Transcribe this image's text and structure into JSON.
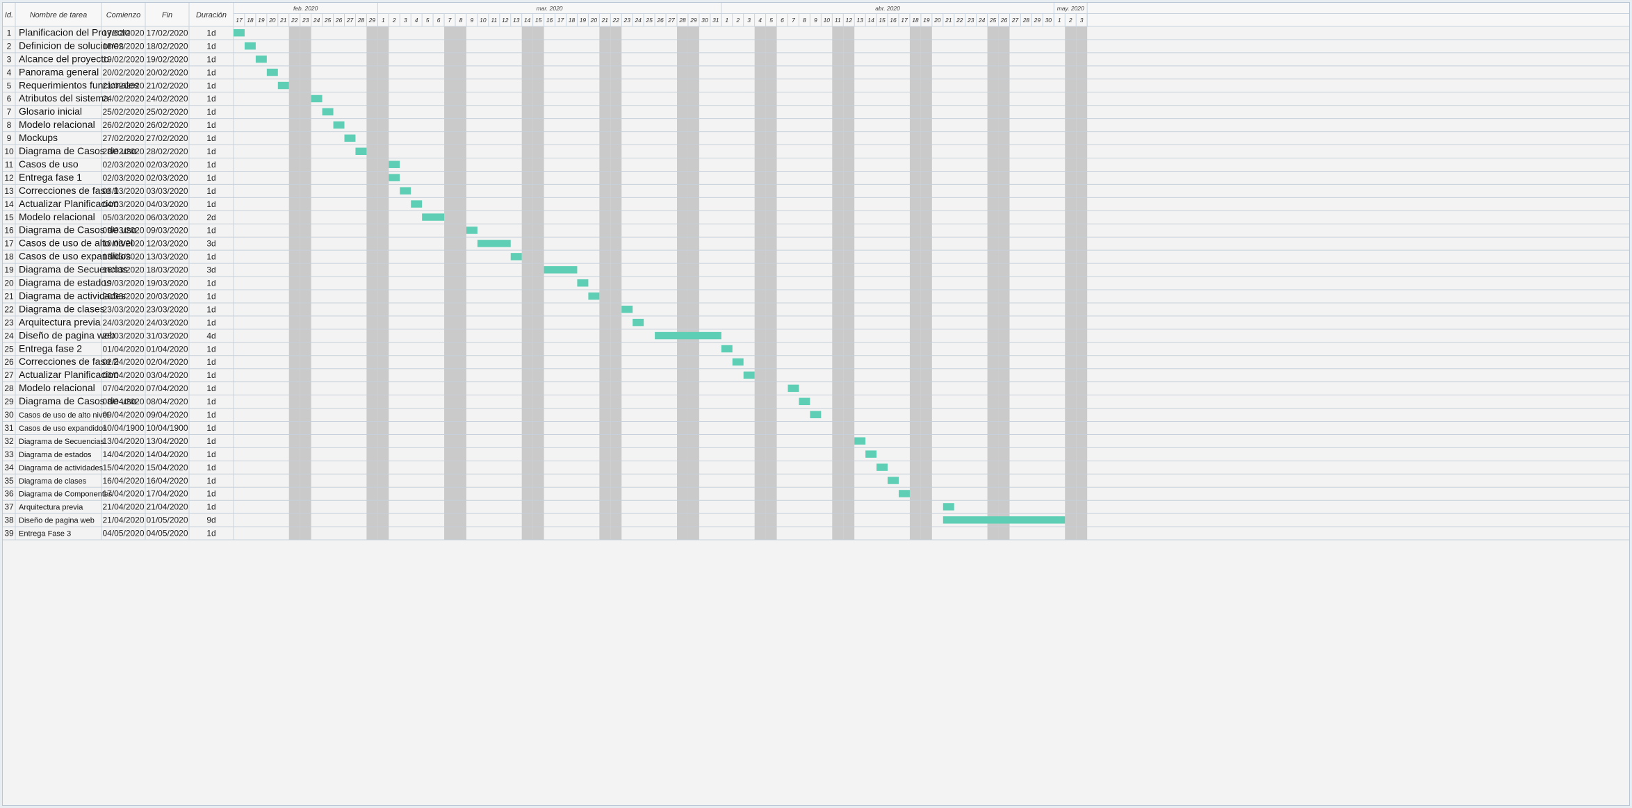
{
  "columns": {
    "id": "Id.",
    "name": "Nombre de tarea",
    "start": "Comienzo",
    "end": "Fin",
    "duration": "Duración"
  },
  "colors": {
    "bar": "#5ecfb4",
    "weekend": "#cacaca",
    "grid": "#c9d3de",
    "row_border": "#c6d0da"
  },
  "chart_data": {
    "type": "gantt",
    "timeline_start": "2020-02-17",
    "timeline_end": "2020-05-03",
    "months": [
      {
        "label": "feb. 2020",
        "start": "2020-02-17",
        "end": "2020-02-29"
      },
      {
        "label": "mar. 2020",
        "start": "2020-03-01",
        "end": "2020-03-31"
      },
      {
        "label": "abr. 2020",
        "start": "2020-04-01",
        "end": "2020-04-30"
      },
      {
        "label": "may. 2020",
        "start": "2020-05-01",
        "end": "2020-05-03"
      }
    ],
    "tasks": [
      {
        "id": "1",
        "name": "Planificacion del Proyecto",
        "start": "17/02/2020",
        "end": "17/02/2020",
        "duration": "1d",
        "bar_start": "2020-02-17",
        "bar_end": "2020-02-17"
      },
      {
        "id": "2",
        "name": "Definicion de soluciones",
        "start": "18/02/2020",
        "end": "18/02/2020",
        "duration": "1d",
        "bar_start": "2020-02-18",
        "bar_end": "2020-02-18"
      },
      {
        "id": "3",
        "name": "Alcance del proyecto",
        "start": "19/02/2020",
        "end": "19/02/2020",
        "duration": "1d",
        "bar_start": "2020-02-19",
        "bar_end": "2020-02-19"
      },
      {
        "id": "4",
        "name": "Panorama general",
        "start": "20/02/2020",
        "end": "20/02/2020",
        "duration": "1d",
        "bar_start": "2020-02-20",
        "bar_end": "2020-02-20"
      },
      {
        "id": "5",
        "name": "Requerimientos funcionales",
        "start": "21/02/2020",
        "end": "21/02/2020",
        "duration": "1d",
        "bar_start": "2020-02-21",
        "bar_end": "2020-02-21"
      },
      {
        "id": "6",
        "name": "Atributos del sistema",
        "start": "24/02/2020",
        "end": "24/02/2020",
        "duration": "1d",
        "bar_start": "2020-02-24",
        "bar_end": "2020-02-24"
      },
      {
        "id": "7",
        "name": "Glosario inicial",
        "start": "25/02/2020",
        "end": "25/02/2020",
        "duration": "1d",
        "bar_start": "2020-02-25",
        "bar_end": "2020-02-25"
      },
      {
        "id": "8",
        "name": "Modelo relacional",
        "start": "26/02/2020",
        "end": "26/02/2020",
        "duration": "1d",
        "bar_start": "2020-02-26",
        "bar_end": "2020-02-26"
      },
      {
        "id": "9",
        "name": "Mockups",
        "start": "27/02/2020",
        "end": "27/02/2020",
        "duration": "1d",
        "bar_start": "2020-02-27",
        "bar_end": "2020-02-27"
      },
      {
        "id": "10",
        "name": "Diagrama de Casos de uso",
        "start": "28/02/2020",
        "end": "28/02/2020",
        "duration": "1d",
        "bar_start": "2020-02-28",
        "bar_end": "2020-02-28"
      },
      {
        "id": "11",
        "name": "Casos de uso",
        "start": "02/03/2020",
        "end": "02/03/2020",
        "duration": "1d",
        "bar_start": "2020-03-02",
        "bar_end": "2020-03-02"
      },
      {
        "id": "12",
        "name": "Entrega fase 1",
        "start": "02/03/2020",
        "end": "02/03/2020",
        "duration": "1d",
        "bar_start": "2020-03-02",
        "bar_end": "2020-03-02"
      },
      {
        "id": "13",
        "name": "Correcciones de fase 1",
        "start": "03/03/2020",
        "end": "03/03/2020",
        "duration": "1d",
        "bar_start": "2020-03-03",
        "bar_end": "2020-03-03"
      },
      {
        "id": "14",
        "name": "Actualizar Planificacion",
        "start": "04/03/2020",
        "end": "04/03/2020",
        "duration": "1d",
        "bar_start": "2020-03-04",
        "bar_end": "2020-03-04"
      },
      {
        "id": "15",
        "name": "Modelo relacional",
        "start": "05/03/2020",
        "end": "06/03/2020",
        "duration": "2d",
        "bar_start": "2020-03-05",
        "bar_end": "2020-03-06"
      },
      {
        "id": "16",
        "name": "Diagrama de Casos de uso",
        "start": "09/03/2020",
        "end": "09/03/2020",
        "duration": "1d",
        "bar_start": "2020-03-09",
        "bar_end": "2020-03-09"
      },
      {
        "id": "17",
        "name": "Casos de uso de alto nivel",
        "start": "10/03/2020",
        "end": "12/03/2020",
        "duration": "3d",
        "bar_start": "2020-03-10",
        "bar_end": "2020-03-12"
      },
      {
        "id": "18",
        "name": "Casos de uso expandidos",
        "start": "13/03/2020",
        "end": "13/03/2020",
        "duration": "1d",
        "bar_start": "2020-03-13",
        "bar_end": "2020-03-13"
      },
      {
        "id": "19",
        "name": "Diagrama de Secuencias",
        "start": "16/03/2020",
        "end": "18/03/2020",
        "duration": "3d",
        "bar_start": "2020-03-16",
        "bar_end": "2020-03-18"
      },
      {
        "id": "20",
        "name": "Diagrama de estados",
        "start": "19/03/2020",
        "end": "19/03/2020",
        "duration": "1d",
        "bar_start": "2020-03-19",
        "bar_end": "2020-03-19"
      },
      {
        "id": "21",
        "name": "Diagrama de actividades",
        "start": "20/03/2020",
        "end": "20/03/2020",
        "duration": "1d",
        "bar_start": "2020-03-20",
        "bar_end": "2020-03-20"
      },
      {
        "id": "22",
        "name": "Diagrama de clases",
        "start": "23/03/2020",
        "end": "23/03/2020",
        "duration": "1d",
        "bar_start": "2020-03-23",
        "bar_end": "2020-03-23"
      },
      {
        "id": "23",
        "name": "Arquitectura previa",
        "start": "24/03/2020",
        "end": "24/03/2020",
        "duration": "1d",
        "bar_start": "2020-03-24",
        "bar_end": "2020-03-24"
      },
      {
        "id": "24",
        "name": "Diseño de pagina web",
        "start": "26/03/2020",
        "end": "31/03/2020",
        "duration": "4d",
        "bar_start": "2020-03-26",
        "bar_end": "2020-03-31"
      },
      {
        "id": "25",
        "name": "Entrega fase 2",
        "start": "01/04/2020",
        "end": "01/04/2020",
        "duration": "1d",
        "bar_start": "2020-04-01",
        "bar_end": "2020-04-01"
      },
      {
        "id": "26",
        "name": "Correcciones de fase 2",
        "start": "02/04/2020",
        "end": "02/04/2020",
        "duration": "1d",
        "bar_start": "2020-04-02",
        "bar_end": "2020-04-02"
      },
      {
        "id": "27",
        "name": "Actualizar Planificacion",
        "start": "03/04/2020",
        "end": "03/04/2020",
        "duration": "1d",
        "bar_start": "2020-04-03",
        "bar_end": "2020-04-03"
      },
      {
        "id": "28",
        "name": "Modelo relacional",
        "start": "07/04/2020",
        "end": "07/04/2020",
        "duration": "1d",
        "bar_start": "2020-04-07",
        "bar_end": "2020-04-07"
      },
      {
        "id": "29",
        "name": "Diagrama de Casos de uso",
        "start": "08/04/2020",
        "end": "08/04/2020",
        "duration": "1d",
        "bar_start": "2020-04-08",
        "bar_end": "2020-04-08"
      },
      {
        "id": "30",
        "name": "Casos de uso de alto nivel",
        "start": "09/04/2020",
        "end": "09/04/2020",
        "duration": "1d",
        "bar_start": "2020-04-09",
        "bar_end": "2020-04-09",
        "small": true
      },
      {
        "id": "31",
        "name": "Casos de uso expandidos",
        "start": "10/04/1900",
        "end": "10/04/1900",
        "duration": "1d",
        "small": true
      },
      {
        "id": "32",
        "name": "Diagrama de Secuencias",
        "start": "13/04/2020",
        "end": "13/04/2020",
        "duration": "1d",
        "bar_start": "2020-04-13",
        "bar_end": "2020-04-13",
        "small": true
      },
      {
        "id": "33",
        "name": "Diagrama de estados",
        "start": "14/04/2020",
        "end": "14/04/2020",
        "duration": "1d",
        "bar_start": "2020-04-14",
        "bar_end": "2020-04-14",
        "small": true
      },
      {
        "id": "34",
        "name": "Diagrama de actividades",
        "start": "15/04/2020",
        "end": "15/04/2020",
        "duration": "1d",
        "bar_start": "2020-04-15",
        "bar_end": "2020-04-15",
        "small": true
      },
      {
        "id": "35",
        "name": "Diagrama de clases",
        "start": "16/04/2020",
        "end": "16/04/2020",
        "duration": "1d",
        "bar_start": "2020-04-16",
        "bar_end": "2020-04-16",
        "small": true
      },
      {
        "id": "36",
        "name": "Diagrama de Componentes",
        "start": "17/04/2020",
        "end": "17/04/2020",
        "duration": "1d",
        "bar_start": "2020-04-17",
        "bar_end": "2020-04-17",
        "small": true
      },
      {
        "id": "37",
        "name": "Arquitectura previa",
        "start": "21/04/2020",
        "end": "21/04/2020",
        "duration": "1d",
        "bar_start": "2020-04-21",
        "bar_end": "2020-04-21",
        "small": true
      },
      {
        "id": "38",
        "name": "Diseño de pagina web",
        "start": "21/04/2020",
        "end": "01/05/2020",
        "duration": "9d",
        "bar_start": "2020-04-21",
        "bar_end": "2020-05-01",
        "small": true
      },
      {
        "id": "39",
        "name": "Entrega Fase 3",
        "start": "04/05/2020",
        "end": "04/05/2020",
        "duration": "1d",
        "small": true
      }
    ]
  }
}
